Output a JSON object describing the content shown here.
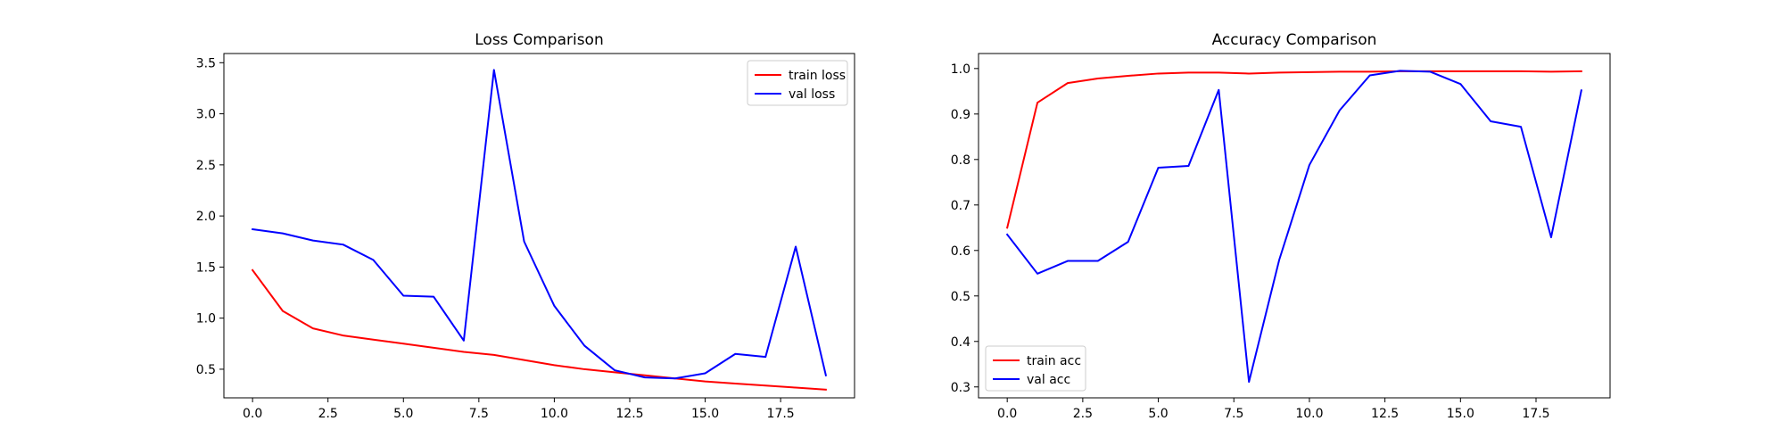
{
  "chart_data": [
    {
      "type": "line",
      "title": "Loss Comparison",
      "xlabel": "",
      "ylabel": "",
      "x": [
        0,
        1,
        2,
        3,
        4,
        5,
        6,
        7,
        8,
        9,
        10,
        11,
        12,
        13,
        14,
        15,
        16,
        17,
        18,
        19
      ],
      "xlim": [
        -0.95,
        19.95
      ],
      "ylim": [
        0.22,
        3.59
      ],
      "xticks": [
        0.0,
        2.5,
        5.0,
        7.5,
        10.0,
        12.5,
        15.0,
        17.5
      ],
      "xtick_labels": [
        "0.0",
        "2.5",
        "5.0",
        "7.5",
        "10.0",
        "12.5",
        "15.0",
        "17.5"
      ],
      "yticks": [
        0.5,
        1.0,
        1.5,
        2.0,
        2.5,
        3.0,
        3.5
      ],
      "ytick_labels": [
        "0.5",
        "1.0",
        "1.5",
        "2.0",
        "2.5",
        "3.0",
        "3.5"
      ],
      "legend_position": "top-right",
      "grid": false,
      "series": [
        {
          "name": "train loss",
          "color": "#ff0000",
          "values": [
            1.47,
            1.07,
            0.9,
            0.83,
            0.79,
            0.75,
            0.71,
            0.67,
            0.64,
            0.59,
            0.54,
            0.5,
            0.47,
            0.44,
            0.41,
            0.38,
            0.36,
            0.34,
            0.32,
            0.3
          ]
        },
        {
          "name": "val loss",
          "color": "#0000ff",
          "values": [
            1.87,
            1.83,
            1.76,
            1.72,
            1.57,
            1.22,
            1.21,
            0.78,
            3.43,
            1.75,
            1.12,
            0.73,
            0.49,
            0.42,
            0.41,
            0.46,
            0.65,
            0.62,
            1.7,
            0.44
          ]
        }
      ]
    },
    {
      "type": "line",
      "title": "Accuracy Comparison",
      "xlabel": "",
      "ylabel": "",
      "x": [
        0,
        1,
        2,
        3,
        4,
        5,
        6,
        7,
        8,
        9,
        10,
        11,
        12,
        13,
        14,
        15,
        16,
        17,
        18,
        19
      ],
      "xlim": [
        -0.95,
        19.95
      ],
      "ylim": [
        0.276,
        1.033
      ],
      "xticks": [
        0.0,
        2.5,
        5.0,
        7.5,
        10.0,
        12.5,
        15.0,
        17.5
      ],
      "xtick_labels": [
        "0.0",
        "2.5",
        "5.0",
        "7.5",
        "10.0",
        "12.5",
        "15.0",
        "17.5"
      ],
      "yticks": [
        0.3,
        0.4,
        0.5,
        0.6,
        0.7,
        0.8,
        0.9,
        1.0
      ],
      "ytick_labels": [
        "0.3",
        "0.4",
        "0.5",
        "0.6",
        "0.7",
        "0.8",
        "0.9",
        "1.0"
      ],
      "legend_position": "bottom-left",
      "grid": false,
      "series": [
        {
          "name": "train acc",
          "color": "#ff0000",
          "values": [
            0.65,
            0.925,
            0.968,
            0.978,
            0.984,
            0.989,
            0.991,
            0.991,
            0.989,
            0.991,
            0.992,
            0.993,
            0.993,
            0.994,
            0.994,
            0.994,
            0.994,
            0.994,
            0.993,
            0.994
          ]
        },
        {
          "name": "val acc",
          "color": "#0000ff",
          "values": [
            0.635,
            0.549,
            0.577,
            0.577,
            0.619,
            0.782,
            0.786,
            0.953,
            0.311,
            0.579,
            0.788,
            0.908,
            0.985,
            0.995,
            0.993,
            0.966,
            0.884,
            0.872,
            0.629,
            0.952
          ]
        }
      ]
    }
  ]
}
